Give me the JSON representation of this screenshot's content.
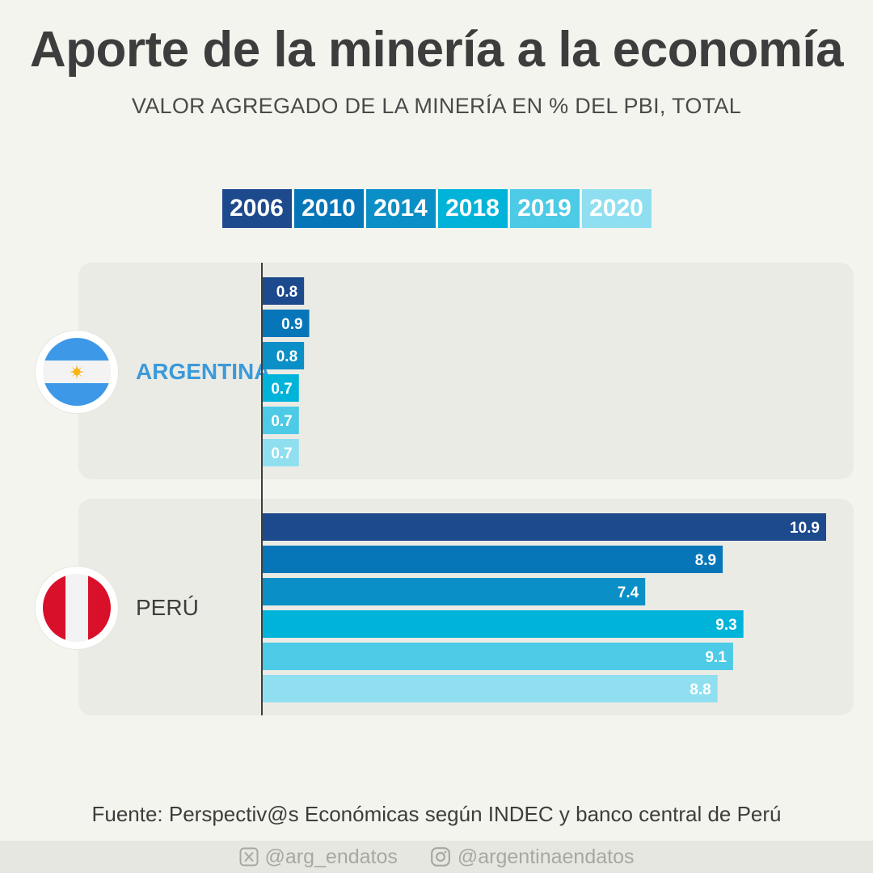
{
  "title": "Aporte de la minería a la economía",
  "subtitle": "VALOR AGREGADO DE LA MINERÍA EN % DEL PBI, TOTAL",
  "legend": [
    {
      "label": "2006",
      "color": "#1d4a8d"
    },
    {
      "label": "2010",
      "color": "#0676b9"
    },
    {
      "label": "2014",
      "color": "#0a8fc6"
    },
    {
      "label": "2018",
      "color": "#00b3d8"
    },
    {
      "label": "2019",
      "color": "#4ccae6"
    },
    {
      "label": "2020",
      "color": "#90dff0"
    }
  ],
  "countries": {
    "argentina": {
      "name": "ARGENTINA",
      "flag_icon": "argentina-flag-icon"
    },
    "peru": {
      "name": "PERÚ",
      "flag_icon": "peru-flag-icon"
    }
  },
  "chart_data": {
    "type": "bar",
    "orientation": "horizontal",
    "title": "Aporte de la minería a la economía",
    "subtitle": "VALOR AGREGADO DE LA MINERÍA EN % DEL PBI, TOTAL",
    "categories": [
      "ARGENTINA",
      "PERÚ"
    ],
    "series": [
      {
        "name": "2006",
        "values": [
          0.8,
          10.9
        ]
      },
      {
        "name": "2010",
        "values": [
          0.9,
          8.9
        ]
      },
      {
        "name": "2014",
        "values": [
          0.8,
          7.4
        ]
      },
      {
        "name": "2018",
        "values": [
          0.7,
          9.3
        ]
      },
      {
        "name": "2019",
        "values": [
          0.7,
          9.1
        ]
      },
      {
        "name": "2020",
        "values": [
          0.7,
          8.8
        ]
      }
    ],
    "legend_position": "top",
    "grid": false,
    "data_labels": true
  },
  "source": "Fuente: Perspectiv@s Económicas según INDEC y banco central de Perú",
  "footer": {
    "twitter": "@arg_endatos",
    "instagram": "@argentinaendatos"
  }
}
